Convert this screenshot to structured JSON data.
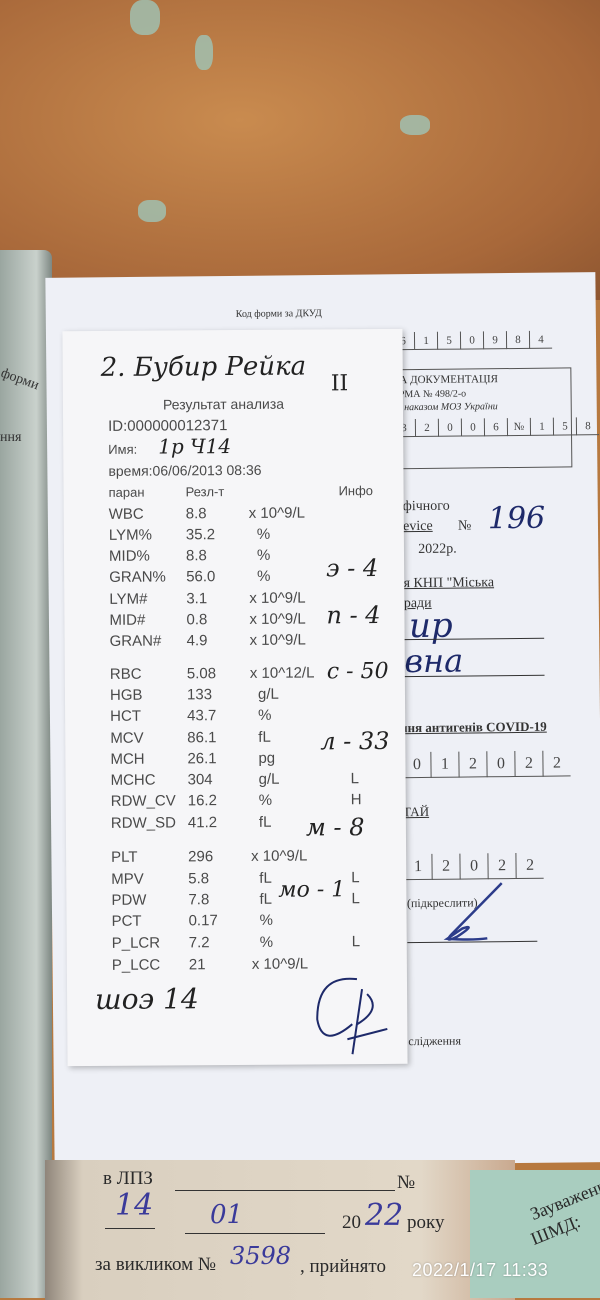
{
  "photo_timestamp": "2022/1/17 11:33",
  "left_booklet": {
    "text_1": "форми",
    "text_2": "ння"
  },
  "form": {
    "code_label": "Код форми за ДКУД",
    "code_digits": [
      "6",
      "1",
      "5",
      "0",
      "9",
      "8",
      "4"
    ],
    "doc_header_1": "НА ДОКУМЕНТАЦІЯ",
    "doc_header_2": "ОРМА № 498/2-о",
    "doc_header_3": "на наказом МОЗ України",
    "doc_digits": [
      "3",
      "2",
      "0",
      "0",
      "6",
      "№",
      "1",
      "5",
      "8"
    ],
    "line_1": "фічного",
    "device_label": "Device",
    "number_sign": "№",
    "device_number": "196",
    "year_line": "2022р.",
    "org_line_1": "я КНП \"Міська",
    "org_line_2": "ради",
    "hand_name_1": "ир",
    "hand_name_2": "вна",
    "covid_line": "ння антигенів COVID-19",
    "date_digits_1": [
      "0",
      "1",
      "2",
      "0",
      "2",
      "2"
    ],
    "result_label": "ТАЙ",
    "date_digits_2": [
      "1",
      "2",
      "0",
      "2",
      "2"
    ],
    "underline_note": "(підкреслити)",
    "footer_text": "слідження"
  },
  "receipt": {
    "hand_title": "2. Бубир Рейка",
    "hand_roman": "II",
    "title": "Результат анализа",
    "id": "ID:000000012371",
    "name_label": "Имя:",
    "name_hand": "1р Ч14",
    "time": "время:06/06/2013 08:36",
    "col_param": "паран",
    "col_result": "Резл-т",
    "col_info": "Инфо",
    "rows": [
      {
        "param": "WBC",
        "value": "8.8",
        "unit": "x 10^9/L",
        "flag": ""
      },
      {
        "param": "LYM%",
        "value": "35.2",
        "unit": "%",
        "flag": ""
      },
      {
        "param": "MID%",
        "value": "8.8",
        "unit": "%",
        "flag": ""
      },
      {
        "param": "GRAN%",
        "value": "56.0",
        "unit": "%",
        "flag": ""
      },
      {
        "param": "LYM#",
        "value": "3.1",
        "unit": "x 10^9/L",
        "flag": ""
      },
      {
        "param": "MID#",
        "value": "0.8",
        "unit": "x 10^9/L",
        "flag": ""
      },
      {
        "param": "GRAN#",
        "value": "4.9",
        "unit": "x 10^9/L",
        "flag": ""
      },
      {
        "param": "RBC",
        "value": "5.08",
        "unit": "x 10^12/L",
        "flag": ""
      },
      {
        "param": "HGB",
        "value": "133",
        "unit": "g/L",
        "flag": ""
      },
      {
        "param": "HCT",
        "value": "43.7",
        "unit": "%",
        "flag": ""
      },
      {
        "param": "MCV",
        "value": "86.1",
        "unit": "fL",
        "flag": ""
      },
      {
        "param": "MCH",
        "value": "26.1",
        "unit": "pg",
        "flag": ""
      },
      {
        "param": "MCHC",
        "value": "304",
        "unit": "g/L",
        "flag": "L"
      },
      {
        "param": "RDW_CV",
        "value": "16.2",
        "unit": "%",
        "flag": "H"
      },
      {
        "param": "RDW_SD",
        "value": "41.2",
        "unit": "fL",
        "flag": ""
      },
      {
        "param": "PLT",
        "value": "296",
        "unit": "x 10^9/L",
        "flag": ""
      },
      {
        "param": "MPV",
        "value": "5.8",
        "unit": "fL",
        "flag": "L"
      },
      {
        "param": "PDW",
        "value": "7.8",
        "unit": "fL",
        "flag": "L"
      },
      {
        "param": "PCT",
        "value": "0.17",
        "unit": "%",
        "flag": ""
      },
      {
        "param": "P_LCR",
        "value": "7.2",
        "unit": "%",
        "flag": "L"
      },
      {
        "param": "P_LCC",
        "value": "21",
        "unit": "x 10^9/L",
        "flag": ""
      }
    ],
    "hand_notes": [
      "э - 4",
      "п - 4",
      "с - 50",
      "л - 33",
      "м - 8",
      "мо - 1"
    ],
    "hand_esr": "шоэ 14"
  },
  "bottom_booklet": {
    "lpz_label": "в ЛПЗ",
    "number_sign": "№",
    "day_hand": "14",
    "month_hand": "01",
    "year_prefix": "20",
    "year_hand": "22",
    "year_suffix": "року",
    "call_label": "за викликом №",
    "call_number": "3598",
    "accepted_label": ", прийнято",
    "remarks_label": "Зауваження",
    "shmd_label": "ШМД:"
  }
}
